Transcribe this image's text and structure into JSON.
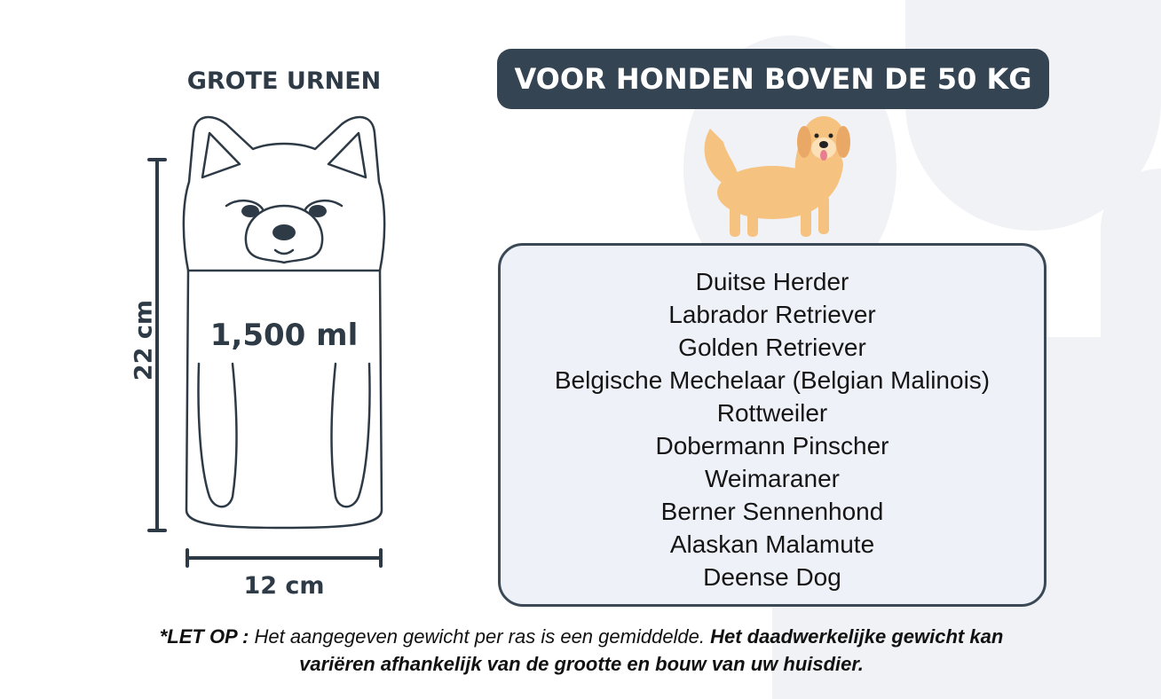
{
  "urn": {
    "title": "GROTE URNEN",
    "volume": "1,500 ml",
    "height": "22 cm",
    "width": "12 cm"
  },
  "header": {
    "title": "VOOR HONDEN BOVEN DE 50 KG"
  },
  "breeds": [
    "Duitse Herder",
    "Labrador Retriever",
    "Golden Retriever",
    "Belgische Mechelaar (Belgian Malinois)",
    "Rottweiler",
    "Dobermann Pinscher",
    "Weimaraner",
    "Berner Sennenhond",
    "Alaskan Malamute",
    "Deense Dog"
  ],
  "note": {
    "prefix": "*LET OP :",
    "italic": " Het aangegeven gewicht per ras is een gemiddelde. ",
    "bold": "Het daadwerkelijke gewicht kan variëren afhankelijk van de grootte en bouw van uw huisdier."
  },
  "colors": {
    "dark": "#344452",
    "box_fill": "#eef2f8",
    "dog": "#f6c27f"
  }
}
